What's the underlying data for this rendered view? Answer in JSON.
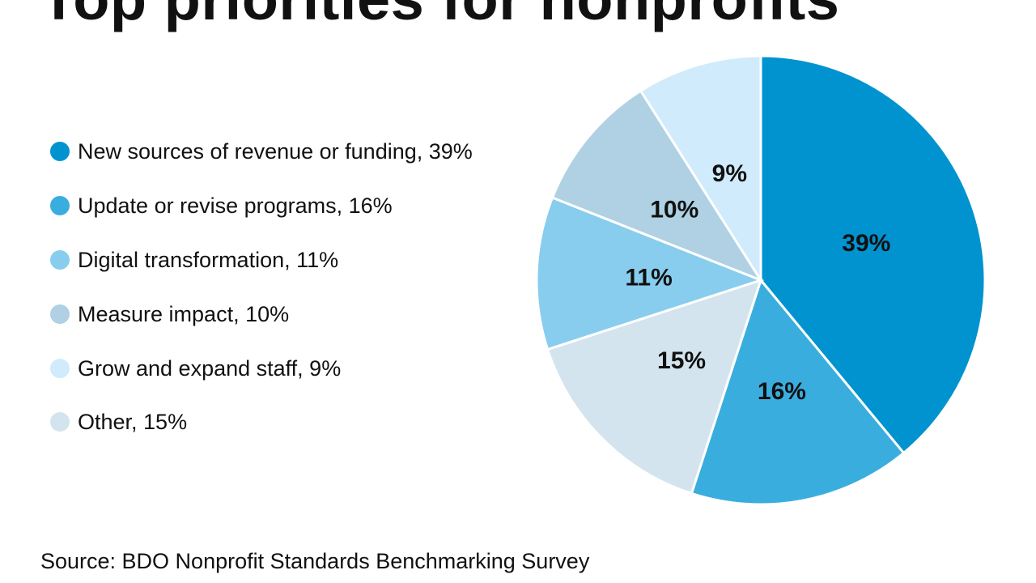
{
  "chart_data": {
    "type": "pie",
    "title": "Top priorities for nonprofits",
    "legend_position": "left",
    "categories": [
      "New sources of revenue or funding",
      "Update or revise programs",
      "Other",
      "Digital transformation",
      "Measure impact",
      "Grow and expand staff"
    ],
    "values": [
      39,
      16,
      15,
      11,
      10,
      9
    ],
    "slice_labels": [
      "39%",
      "16%",
      "15%",
      "11%",
      "10%",
      "9%"
    ],
    "colors": [
      "#0093d0",
      "#3aaddf",
      "#d4e4ee",
      "#88cdee",
      "#afd1e3",
      "#d0ebfb"
    ],
    "legend": [
      {
        "label": "New sources of revenue or funding, 39%",
        "color": "#0093d0"
      },
      {
        "label": "Update or revise programs, 16%",
        "color": "#3aaddf"
      },
      {
        "label": "Digital transformation, 11%",
        "color": "#88cdee"
      },
      {
        "label": "Measure impact, 10%",
        "color": "#afd1e3"
      },
      {
        "label": "Grow and expand staff, 9%",
        "color": "#d0ebfb"
      },
      {
        "label": "Other, 15%",
        "color": "#d4e4ee"
      }
    ],
    "source": "Source: BDO Nonprofit Standards Benchmarking Survey"
  }
}
